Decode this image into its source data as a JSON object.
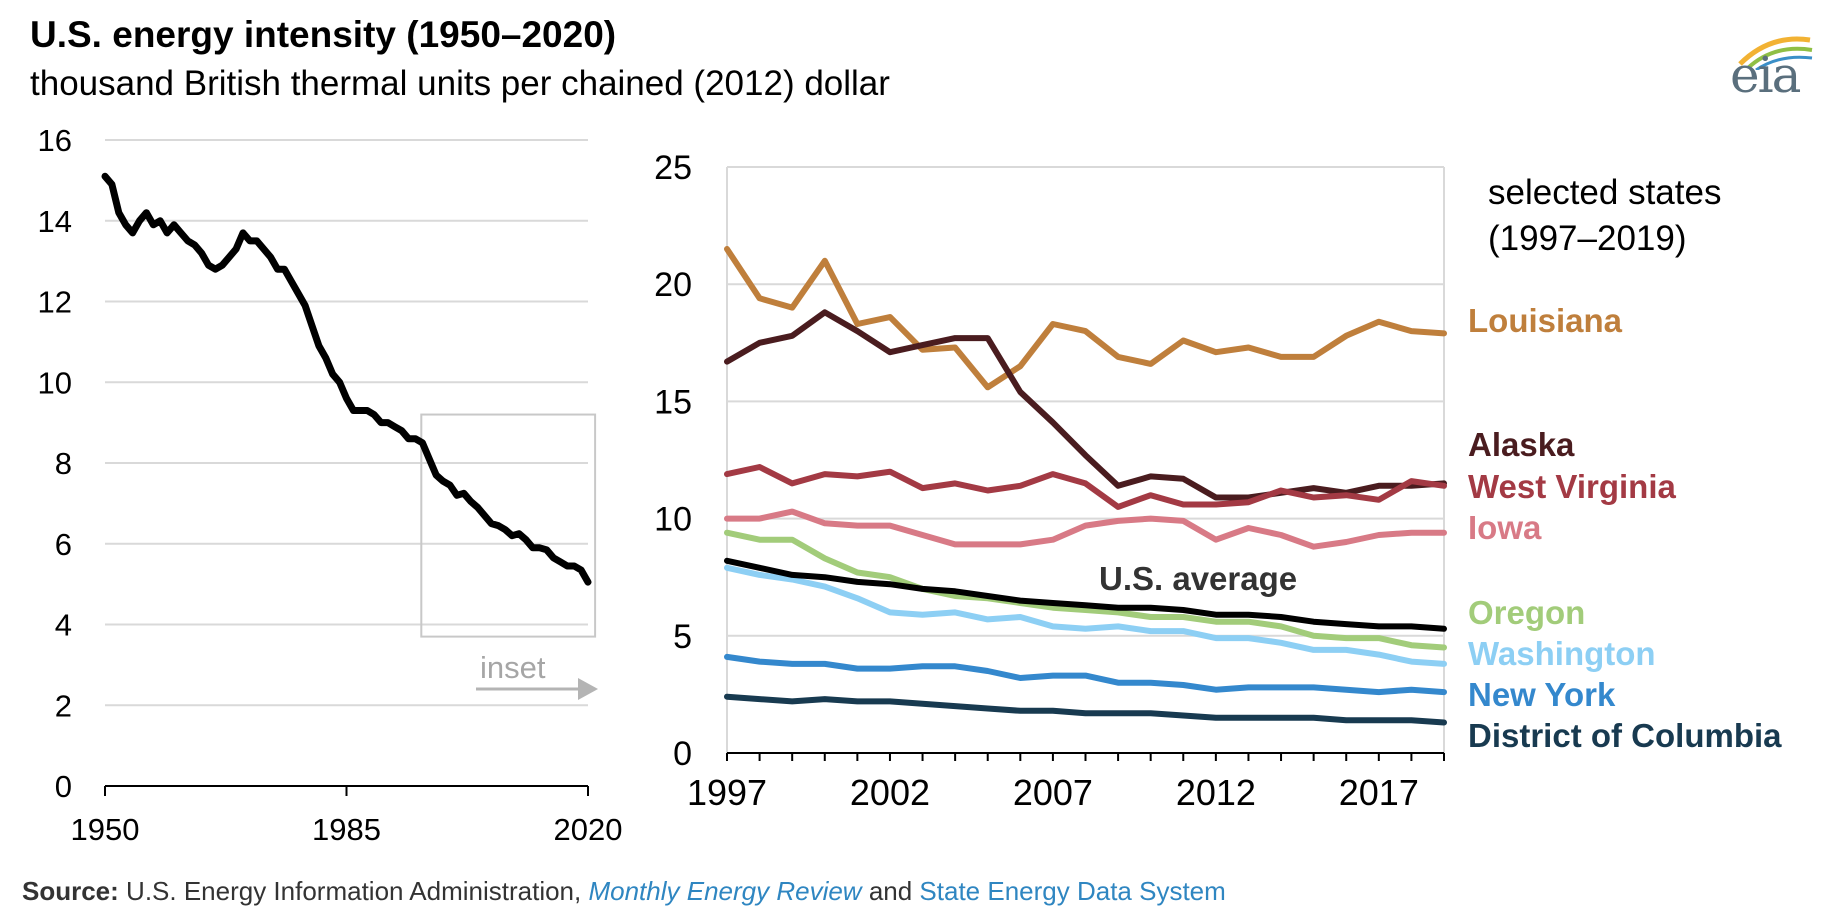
{
  "header": {
    "title": "U.S. energy intensity (1950–2020)",
    "subtitle": "thousand British thermal units per chained (2012) dollar",
    "logo_text": "eia"
  },
  "source": {
    "label": "Source:",
    "text1": " U.S. Energy Information Administration, ",
    "link1": "Monthly Energy Review",
    "text2": " and ",
    "link2": "State Energy Data System"
  },
  "chart_data": [
    {
      "type": "line",
      "title": "U.S. energy intensity (1950–2020)",
      "ylabel": "thousand British thermal units per chained (2012) dollar",
      "xlim": [
        1950,
        2020
      ],
      "ylim": [
        0,
        16
      ],
      "x_ticks": [
        "1950",
        "1985",
        "2020"
      ],
      "y_ticks": [
        "0",
        "2",
        "4",
        "6",
        "8",
        "10",
        "12",
        "14",
        "16"
      ],
      "inset_label": "inset",
      "inset_range": {
        "x": [
          1997,
          2019
        ]
      },
      "series": [
        {
          "color": "#000000",
          "x": [
            1950,
            1951,
            1952,
            1953,
            1954,
            1955,
            1956,
            1957,
            1958,
            1959,
            1960,
            1961,
            1962,
            1963,
            1964,
            1965,
            1966,
            1967,
            1968,
            1969,
            1970,
            1971,
            1972,
            1973,
            1974,
            1975,
            1976,
            1977,
            1978,
            1979,
            1980,
            1981,
            1982,
            1983,
            1984,
            1985,
            1986,
            1987,
            1988,
            1989,
            1990,
            1991,
            1992,
            1993,
            1994,
            1995,
            1996,
            1997,
            1998,
            1999,
            2000,
            2001,
            2002,
            2003,
            2004,
            2005,
            2006,
            2007,
            2008,
            2009,
            2010,
            2011,
            2012,
            2013,
            2014,
            2015,
            2016,
            2017,
            2018,
            2019,
            2020
          ],
          "y": [
            15.1,
            14.9,
            14.2,
            13.9,
            13.7,
            14.0,
            14.2,
            13.9,
            14.0,
            13.7,
            13.9,
            13.7,
            13.5,
            13.4,
            13.2,
            12.9,
            12.8,
            12.9,
            13.1,
            13.3,
            13.7,
            13.5,
            13.5,
            13.3,
            13.1,
            12.8,
            12.8,
            12.5,
            12.2,
            11.9,
            11.4,
            10.9,
            10.6,
            10.2,
            10.0,
            9.6,
            9.3,
            9.3,
            9.3,
            9.2,
            9.0,
            9.0,
            8.9,
            8.8,
            8.6,
            8.6,
            8.5,
            8.1,
            7.7,
            7.55,
            7.45,
            7.2,
            7.25,
            7.05,
            6.9,
            6.7,
            6.5,
            6.45,
            6.35,
            6.2,
            6.25,
            6.1,
            5.9,
            5.9,
            5.85,
            5.65,
            5.55,
            5.45,
            5.45,
            5.35,
            5.05
          ]
        }
      ]
    },
    {
      "type": "line",
      "title": "selected states (1997–2019)",
      "xlim": [
        1997,
        2019
      ],
      "ylim": [
        0,
        25
      ],
      "x_ticks": [
        "1997",
        "2002",
        "2007",
        "2012",
        "2017"
      ],
      "y_ticks": [
        "0",
        "5",
        "10",
        "15",
        "20",
        "25"
      ],
      "x": [
        1997,
        1998,
        1999,
        2000,
        2001,
        2002,
        2003,
        2004,
        2005,
        2006,
        2007,
        2008,
        2009,
        2010,
        2011,
        2012,
        2013,
        2014,
        2015,
        2016,
        2017,
        2018,
        2019
      ],
      "series": [
        {
          "name": "Louisiana",
          "color": "#bf7f3c",
          "values": [
            21.5,
            19.4,
            19.0,
            21.0,
            18.3,
            18.6,
            17.2,
            17.3,
            15.6,
            16.5,
            18.3,
            18.0,
            16.9,
            16.6,
            17.6,
            17.1,
            17.3,
            16.9,
            16.9,
            17.8,
            18.4,
            18.0,
            17.9
          ]
        },
        {
          "name": "Alaska",
          "color": "#4a1c1f",
          "values": [
            16.7,
            17.5,
            17.8,
            18.8,
            18.0,
            17.1,
            17.4,
            17.7,
            17.7,
            15.4,
            14.1,
            12.7,
            11.4,
            11.8,
            11.7,
            10.9,
            10.9,
            11.1,
            11.3,
            11.1,
            11.4,
            11.4,
            11.5
          ]
        },
        {
          "name": "West Virginia",
          "color": "#a33a44",
          "values": [
            11.9,
            12.2,
            11.5,
            11.9,
            11.8,
            12.0,
            11.3,
            11.5,
            11.2,
            11.4,
            11.9,
            11.5,
            10.5,
            11.0,
            10.6,
            10.6,
            10.7,
            11.2,
            10.9,
            11.0,
            10.8,
            11.6,
            11.4
          ]
        },
        {
          "name": "Iowa",
          "color": "#d87a86",
          "values": [
            10.0,
            10.0,
            10.3,
            9.8,
            9.7,
            9.7,
            9.3,
            8.9,
            8.9,
            8.9,
            9.1,
            9.7,
            9.9,
            10.0,
            9.9,
            9.1,
            9.6,
            9.3,
            8.8,
            9.0,
            9.3,
            9.4,
            9.4
          ]
        },
        {
          "name": "Oregon",
          "color": "#a2cc7a",
          "values": [
            9.4,
            9.1,
            9.1,
            8.3,
            7.7,
            7.5,
            7.0,
            6.7,
            6.6,
            6.4,
            6.2,
            6.1,
            6.0,
            5.8,
            5.8,
            5.6,
            5.6,
            5.4,
            5.0,
            4.9,
            4.9,
            4.6,
            4.5
          ]
        },
        {
          "name": "Washington",
          "color": "#8dcff4",
          "values": [
            7.9,
            7.6,
            7.4,
            7.1,
            6.6,
            6.0,
            5.9,
            6.0,
            5.7,
            5.8,
            5.4,
            5.3,
            5.4,
            5.2,
            5.2,
            4.9,
            4.9,
            4.7,
            4.4,
            4.4,
            4.2,
            3.9,
            3.8
          ]
        },
        {
          "name": "U.S. average",
          "color": "#000000",
          "values": [
            8.2,
            7.9,
            7.6,
            7.5,
            7.3,
            7.2,
            7.0,
            6.9,
            6.7,
            6.5,
            6.4,
            6.3,
            6.2,
            6.2,
            6.1,
            5.9,
            5.9,
            5.8,
            5.6,
            5.5,
            5.4,
            5.4,
            5.3
          ]
        },
        {
          "name": "New York",
          "color": "#3488cd",
          "values": [
            4.1,
            3.9,
            3.8,
            3.8,
            3.6,
            3.6,
            3.7,
            3.7,
            3.5,
            3.2,
            3.3,
            3.3,
            3.0,
            3.0,
            2.9,
            2.7,
            2.8,
            2.8,
            2.8,
            2.7,
            2.6,
            2.7,
            2.6
          ]
        },
        {
          "name": "District of Columbia",
          "color": "#183a50",
          "values": [
            2.4,
            2.3,
            2.2,
            2.3,
            2.2,
            2.2,
            2.1,
            2.0,
            1.9,
            1.8,
            1.8,
            1.7,
            1.7,
            1.7,
            1.6,
            1.5,
            1.5,
            1.5,
            1.5,
            1.4,
            1.4,
            1.4,
            1.3
          ]
        }
      ]
    }
  ]
}
